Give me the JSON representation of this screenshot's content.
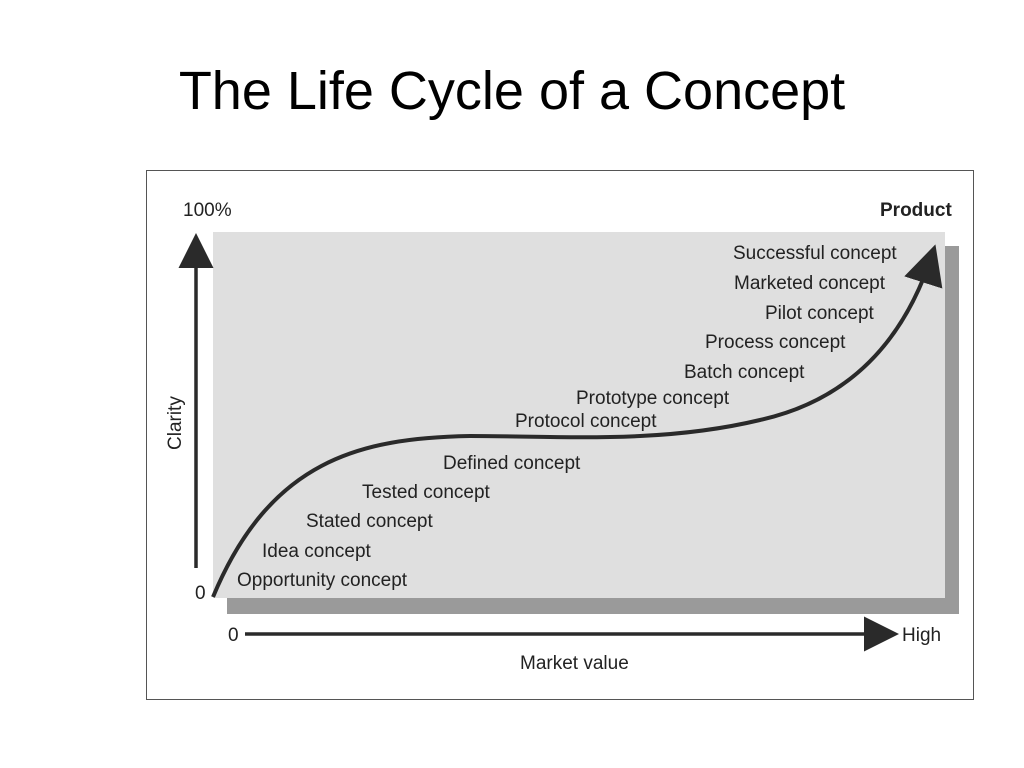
{
  "title": "The Life Cycle of a Concept",
  "diagram": {
    "y_axis": {
      "label": "Clarity",
      "top": "100%",
      "bottom": "0"
    },
    "x_axis": {
      "label": "Market value",
      "start": "0",
      "end": "High"
    },
    "end_label": "Product",
    "stages": [
      "Opportunity concept",
      "Idea concept",
      "Stated concept",
      "Tested concept",
      "Defined concept",
      "Protocol concept",
      "Prototype concept",
      "Batch concept",
      "Process concept",
      "Pilot concept",
      "Marketed concept",
      "Successful concept"
    ],
    "colors": {
      "plot_bg": "#dfdfdf",
      "shadow": "#9a9a9a",
      "curve": "#2a2a2a",
      "text": "#222222"
    }
  }
}
